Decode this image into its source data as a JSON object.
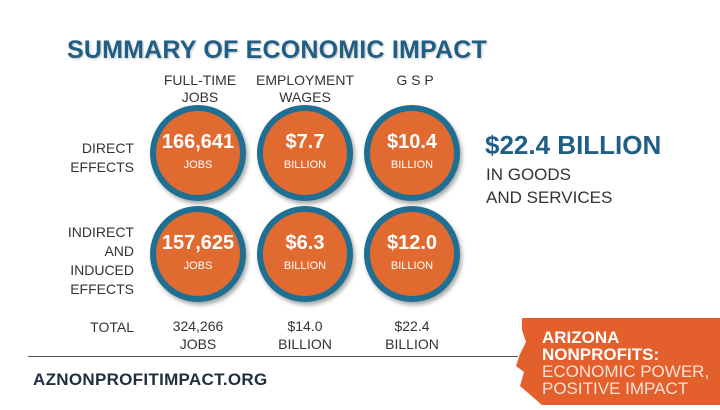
{
  "title": "SUMMARY OF ECONOMIC IMPACT",
  "columns": [
    {
      "line1": "FULL-TIME",
      "line2": "JOBS"
    },
    {
      "line1": "EMPLOYMENT",
      "line2": "WAGES"
    },
    {
      "line1": "G S P",
      "line2": ""
    }
  ],
  "rows": [
    {
      "label_lines": [
        "DIRECT",
        "EFFECTS"
      ],
      "cells": [
        {
          "value": "166,641",
          "unit": "JOBS"
        },
        {
          "value": "$7.7",
          "unit": "BILLION"
        },
        {
          "value": "$10.4",
          "unit": "BILLION"
        }
      ]
    },
    {
      "label_lines": [
        "INDIRECT",
        "AND",
        "INDUCED",
        "EFFECTS"
      ],
      "cells": [
        {
          "value": "157,625",
          "unit": "JOBS"
        },
        {
          "value": "$6.3",
          "unit": "BILLION"
        },
        {
          "value": "$12.0",
          "unit": "BILLION"
        }
      ]
    }
  ],
  "total": {
    "label": "TOTAL",
    "cells": [
      {
        "value": "324,266",
        "unit": "JOBS"
      },
      {
        "value": "$14.0",
        "unit": "BILLION"
      },
      {
        "value": "$22.4",
        "unit": "BILLION"
      }
    ]
  },
  "summary": {
    "headline": "$22.4 BILLION",
    "sub_line1": "IN GOODS",
    "sub_line2": "AND SERVICES"
  },
  "footer_url": "AZNONPROFITIMPACT.ORG",
  "logo": {
    "line1": "ARIZONA",
    "line2": "NONPROFITS:",
    "line3": "ECONOMIC POWER,",
    "line4": "POSITIVE IMPACT",
    "icon": "arizona-map-icon"
  },
  "colors": {
    "orange": "#e06a30",
    "teal_ring": "#1f6f93",
    "title_blue": "#1f5f86",
    "logo_bg": "#e35f2c"
  }
}
